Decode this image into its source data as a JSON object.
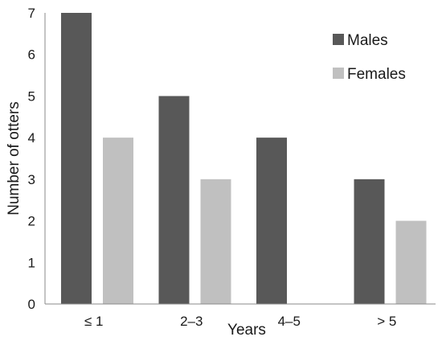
{
  "chart_data": {
    "type": "bar",
    "categories": [
      "≤ 1",
      "2–3",
      "4–5",
      "> 5"
    ],
    "series": [
      {
        "name": "Males",
        "values": [
          7,
          5,
          4,
          3
        ]
      },
      {
        "name": "Females",
        "values": [
          4,
          3,
          0,
          2
        ]
      }
    ],
    "xlabel": "Years",
    "ylabel": "Number of otters",
    "ylim": [
      0,
      7
    ],
    "yticks": [
      "0",
      "1",
      "2",
      "3",
      "4",
      "5",
      "6",
      "7"
    ],
    "grid": false,
    "legend_position": "top-right",
    "colors": {
      "Males": "#585858",
      "Females": "#c0c0c0"
    }
  }
}
